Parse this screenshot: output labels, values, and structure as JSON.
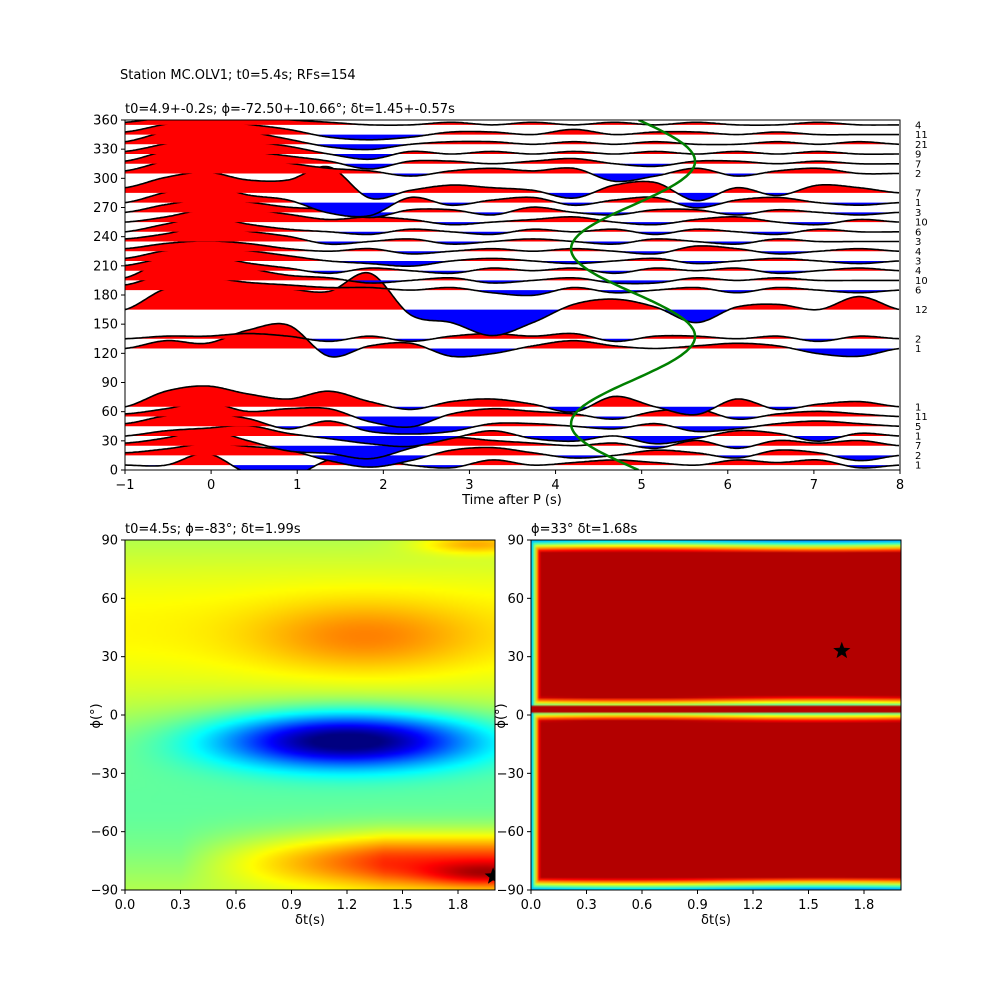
{
  "suptitle": "Station MC.OLV1; t0=5.4s; RFs=154",
  "chart_data": [
    {
      "type": "line",
      "title": "t0=4.9+-0.2s; ϕ=-72.50+-10.66°; δt=1.45+-0.57s",
      "xlabel": "Time after P (s)",
      "ylabel": "",
      "xlim": [
        -1,
        8
      ],
      "ylim": [
        0,
        360
      ],
      "xticks": [
        "−1",
        "0",
        "1",
        "2",
        "3",
        "4",
        "5",
        "6",
        "7",
        "8"
      ],
      "yticks": [
        "0",
        "30",
        "60",
        "90",
        "120",
        "150",
        "180",
        "210",
        "240",
        "270",
        "300",
        "330",
        "360"
      ],
      "fill_colors": {
        "positive": "#ff0000",
        "negative": "#0000ff"
      },
      "fit_curve_color": "#008000",
      "fit_curve": {
        "t0": 4.9,
        "amplitude": 0.72,
        "period_deg": 180,
        "phase_deg": -72.5
      },
      "traces": [
        {
          "baz": 5,
          "count": 1,
          "amps": [
            0,
            0,
            0.45,
            -0.3,
            -0.5,
            0.2,
            0.3,
            0,
            -0.1,
            0.2,
            0,
            0.1,
            0.2,
            0.1,
            0,
            0.2,
            0.1,
            0.2,
            -0.1,
            0
          ]
        },
        {
          "baz": 15,
          "count": 2,
          "amps": [
            0.1,
            0.25,
            0.45,
            0.35,
            0.2,
            -0.2,
            -0.45,
            -0.2,
            0.2,
            0.3,
            0.1,
            -0.1,
            0,
            0.2,
            0.1,
            -0.1,
            0.2,
            0.1,
            -0.2,
            0
          ]
        },
        {
          "baz": 25,
          "count": 7,
          "amps": [
            0.1,
            0.3,
            0.6,
            0.2,
            -0.2,
            -0.3,
            -0.5,
            -0.1,
            0.3,
            0.2,
            0.1,
            0,
            0.1,
            -0.1,
            0.2,
            -0.1,
            0.2,
            0.1,
            0.2,
            0
          ]
        },
        {
          "baz": 35,
          "count": 1,
          "amps": [
            0,
            0.2,
            0.3,
            0.4,
            0.1,
            -0.1,
            -0.3,
            -0.4,
            -0.1,
            0.2,
            -0.1,
            -0.2,
            0,
            -0.3,
            -0.1,
            0.2,
            0.1,
            -0.2,
            0.1,
            0
          ]
        },
        {
          "baz": 45,
          "count": 5,
          "amps": [
            0.1,
            0.4,
            0.5,
            0.3,
            -0.1,
            0.2,
            -0.2,
            -0.3,
            -0.2,
            0.1,
            0.1,
            0,
            -0.1,
            0.1,
            -0.2,
            -0.1,
            0.1,
            0.2,
            0.1,
            0
          ]
        },
        {
          "baz": 55,
          "count": 11,
          "amps": [
            0.1,
            0.3,
            0.55,
            0.2,
            0.3,
            0.3,
            -0.2,
            -0.4,
            0.1,
            0.3,
            0.2,
            0.1,
            -0.1,
            0.2,
            0.3,
            -0.1,
            0.1,
            0.2,
            0.1,
            0
          ]
        },
        {
          "baz": 65,
          "count": 1,
          "amps": [
            0,
            0.6,
            0.8,
            0.5,
            0.3,
            0.6,
            0.2,
            -0.1,
            0.2,
            0.3,
            0.1,
            -0.2,
            0.4,
            0,
            -0.3,
            0.3,
            -0.1,
            0.1,
            0.2,
            0
          ]
        },
        {
          "baz": 125,
          "count": 1,
          "amps": [
            0,
            0.3,
            0.2,
            0.7,
            0.9,
            -0.3,
            0.1,
            0.2,
            -0.3,
            -0.2,
            0.1,
            0.3,
            0.1,
            0,
            0.1,
            0.2,
            0.1,
            -0.2,
            -0.3,
            0
          ]
        },
        {
          "baz": 135,
          "count": 2,
          "amps": [
            0,
            0.1,
            0.1,
            0.2,
            0.1,
            -0.1,
            0.1,
            -0.1,
            0.1,
            0.2,
            0.1,
            0.2,
            -0.1,
            0.1,
            0.1,
            0,
            0.1,
            -0.1,
            0.1,
            0
          ]
        },
        {
          "baz": 165,
          "count": 12,
          "amps": [
            0,
            0.8,
            0.9,
            0.9,
            0.8,
            0.7,
            1.4,
            -0.2,
            -0.5,
            -1.0,
            -0.5,
            0.2,
            0.4,
            0.1,
            -0.5,
            0.1,
            0.2,
            0,
            0.5,
            0
          ]
        },
        {
          "baz": 185,
          "count": 6,
          "amps": [
            0.2,
            0.6,
            0.5,
            0.3,
            0.2,
            0.1,
            0.1,
            0,
            0.1,
            -0.1,
            -0.2,
            0.1,
            -0.1,
            0,
            0.1,
            -0.1,
            0.1,
            0,
            -0.1,
            0
          ]
        },
        {
          "baz": 195,
          "count": 10,
          "amps": [
            0.1,
            0.8,
            1.0,
            0.5,
            0.2,
            0.1,
            -0.1,
            0,
            0.1,
            -0.1,
            0,
            0.1,
            -0.1,
            -0.1,
            0.1,
            0,
            0.1,
            0,
            0,
            0
          ]
        },
        {
          "baz": 205,
          "count": 4,
          "amps": [
            0.2,
            0.5,
            0.6,
            0.3,
            0.1,
            -0.1,
            0.1,
            0,
            -0.1,
            0.1,
            0,
            0.1,
            -0.1,
            0.1,
            0,
            0.1,
            -0.1,
            0,
            0.1,
            0
          ]
        },
        {
          "baz": 215,
          "count": 3,
          "amps": [
            0.1,
            0.4,
            0.5,
            0.4,
            0.2,
            0,
            -0.1,
            -0.2,
            0,
            0.1,
            0,
            -0.1,
            0,
            0.1,
            -0.1,
            0,
            0.1,
            0,
            -0.1,
            0
          ]
        },
        {
          "baz": 225,
          "count": 4,
          "amps": [
            0.1,
            0.3,
            0.4,
            0.3,
            0.1,
            0,
            0.1,
            -0.1,
            0,
            0.1,
            0,
            0.1,
            0,
            -0.1,
            0.2,
            0.1,
            -0.1,
            0,
            0.1,
            0
          ]
        },
        {
          "baz": 235,
          "count": 3,
          "amps": [
            0.1,
            0.3,
            0.6,
            0.4,
            0.2,
            -0.1,
            0,
            0.1,
            -0.1,
            0,
            0.1,
            0,
            -0.1,
            0.1,
            0,
            -0.1,
            0.1,
            0,
            0,
            0
          ]
        },
        {
          "baz": 245,
          "count": 6,
          "amps": [
            0,
            0.3,
            0.6,
            0.3,
            0.1,
            0,
            -0.1,
            0.1,
            0,
            -0.1,
            0.1,
            0,
            0.1,
            -0.1,
            0.1,
            0,
            -0.1,
            0.1,
            0,
            0
          ]
        },
        {
          "baz": 255,
          "count": 10,
          "amps": [
            0,
            0.2,
            0.5,
            0.5,
            0.3,
            0.1,
            0.2,
            0.1,
            -0.1,
            0,
            0.1,
            0.2,
            0,
            -0.1,
            0.1,
            0.2,
            0,
            -0.1,
            0.1,
            0
          ]
        },
        {
          "baz": 265,
          "count": 3,
          "amps": [
            0,
            0.3,
            0.5,
            0.4,
            0.2,
            0.1,
            -0.2,
            0.1,
            0.1,
            -0.1,
            0.2,
            0,
            -0.1,
            0.1,
            0.1,
            -0.1,
            0.1,
            0,
            -0.1,
            0
          ]
        },
        {
          "baz": 275,
          "count": 1,
          "amps": [
            0,
            0.4,
            0.7,
            0.3,
            0.1,
            -0.4,
            -0.5,
            0.2,
            -0.1,
            0.1,
            0.2,
            -0.1,
            0.1,
            0.2,
            -0.2,
            0.1,
            0.2,
            0,
            -0.1,
            0
          ]
        },
        {
          "baz": 285,
          "count": 7,
          "amps": [
            0.2,
            0.6,
            0.8,
            0.5,
            0.5,
            1.0,
            -0.2,
            0.1,
            0.3,
            0.2,
            0.1,
            -0.2,
            0.3,
            0.4,
            -0.3,
            0.2,
            -0.1,
            0.3,
            0.2,
            0
          ]
        },
        {
          "baz": 305,
          "count": 2,
          "amps": [
            0.1,
            0.5,
            0.9,
            0.6,
            0.4,
            0.2,
            0.1,
            -0.1,
            0.1,
            0.2,
            0.1,
            0.2,
            -0.3,
            -0.1,
            0.2,
            -0.1,
            0.1,
            0.2,
            0,
            0
          ]
        },
        {
          "baz": 315,
          "count": 7,
          "amps": [
            0.1,
            0.5,
            0.8,
            0.5,
            0.3,
            0.1,
            -0.2,
            0.1,
            0.1,
            0,
            0.1,
            0.2,
            0,
            -0.1,
            0.1,
            0.1,
            0,
            0.1,
            0,
            0
          ]
        },
        {
          "baz": 325,
          "count": 9,
          "amps": [
            0.1,
            0.4,
            0.7,
            0.5,
            0.3,
            0,
            -0.2,
            0.1,
            0,
            0.1,
            0,
            0.1,
            0,
            0.1,
            0,
            0.1,
            0,
            0.1,
            0,
            0
          ]
        },
        {
          "baz": 335,
          "count": 21,
          "amps": [
            0.1,
            0.5,
            0.8,
            0.5,
            0.2,
            -0.1,
            -0.2,
            0,
            0.1,
            0.1,
            0,
            0.1,
            0,
            0.1,
            0,
            0,
            0.1,
            0,
            0.1,
            0
          ]
        },
        {
          "baz": 345,
          "count": 11,
          "amps": [
            0.1,
            0.4,
            0.6,
            0.4,
            0.2,
            -0.1,
            -0.2,
            -0.1,
            0.1,
            0.1,
            0,
            0.2,
            0,
            0.1,
            0.1,
            0,
            0.1,
            0,
            0,
            0
          ]
        },
        {
          "baz": 355,
          "count": 4,
          "amps": [
            0.1,
            0.3,
            0.5,
            0.4,
            0.2,
            0.1,
            0,
            0,
            0.1,
            0,
            0.1,
            0,
            0.1,
            0,
            0.1,
            0,
            0,
            0.1,
            0,
            0
          ]
        }
      ]
    },
    {
      "type": "heatmap",
      "title": "t0=4.5s; ϕ=-83°; δt=1.99s",
      "xlabel": "δt(s)",
      "ylabel": "ϕ(°)",
      "xlim": [
        0,
        2
      ],
      "ylim": [
        -90,
        90
      ],
      "xticks": [
        "0.0",
        "0.3",
        "0.6",
        "0.9",
        "1.2",
        "1.5",
        "1.8"
      ],
      "yticks": [
        "−90",
        "−60",
        "−30",
        "0",
        "30",
        "60",
        "90"
      ],
      "colormap": "jet",
      "best": {
        "dt": 1.99,
        "phi": -83
      }
    },
    {
      "type": "heatmap",
      "title": "ϕ=33° δt=1.68s",
      "xlabel": "δt(s)",
      "ylabel": "ϕ(°)",
      "xlim": [
        0,
        2
      ],
      "ylim": [
        -90,
        90
      ],
      "xticks": [
        "0.0",
        "0.3",
        "0.6",
        "0.9",
        "1.2",
        "1.5",
        "1.8"
      ],
      "yticks": [
        "−90",
        "−60",
        "−30",
        "0",
        "30",
        "60",
        "90"
      ],
      "colormap": "jet",
      "best": {
        "dt": 1.68,
        "phi": 33
      }
    }
  ]
}
